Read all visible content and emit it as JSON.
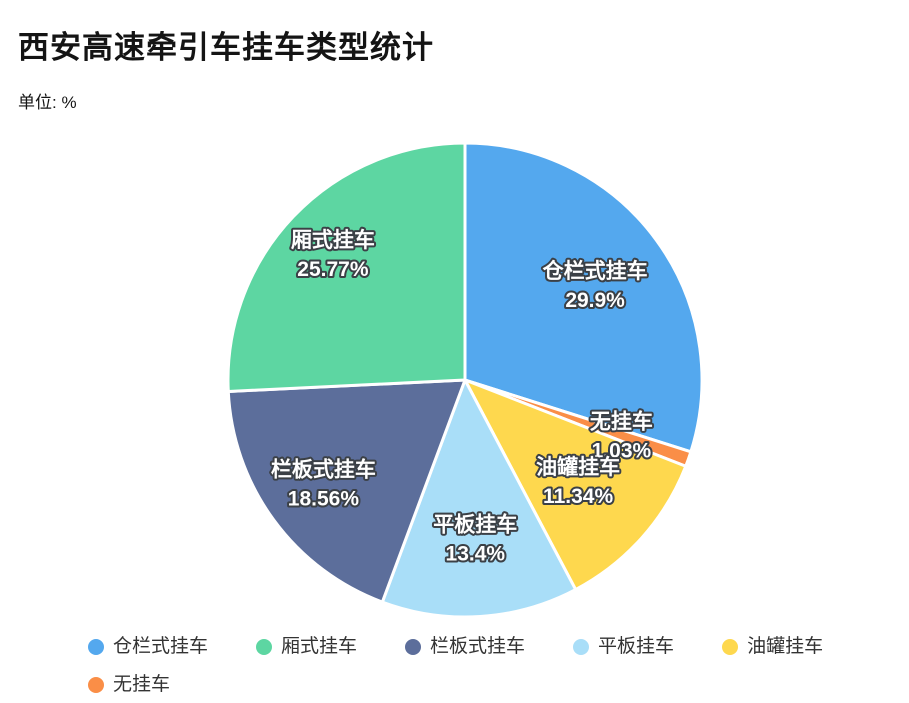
{
  "title": "西安高速牵引车挂车类型统计",
  "subtitle": "单位: %",
  "chart_data": {
    "type": "pie",
    "title": "西安高速牵引车挂车类型统计",
    "unit": "%",
    "start_angle": "12-o-clock",
    "direction": "clockwise",
    "slices": [
      {
        "name": "仓栏式挂车",
        "value": 29.9,
        "color": "#54A8EE"
      },
      {
        "name": "无挂车",
        "value": 1.03,
        "color": "#FA8E47"
      },
      {
        "name": "油罐挂车",
        "value": 11.34,
        "color": "#FED84E"
      },
      {
        "name": "平板挂车",
        "value": 13.4,
        "color": "#A9DEF8"
      },
      {
        "name": "栏板式挂车",
        "value": 18.56,
        "color": "#5C6E9B"
      },
      {
        "name": "厢式挂车",
        "value": 25.77,
        "color": "#5DD6A2"
      }
    ],
    "legend": [
      "仓栏式挂车",
      "厢式挂车",
      "栏板式挂车",
      "平板挂车",
      "油罐挂车",
      "无挂车"
    ],
    "label_format": "{name} {value}%",
    "colors": {
      "text_outline": "#3b4046",
      "label_text": "#ffffff",
      "legend_text": "#333333",
      "background": "#ffffff"
    }
  }
}
